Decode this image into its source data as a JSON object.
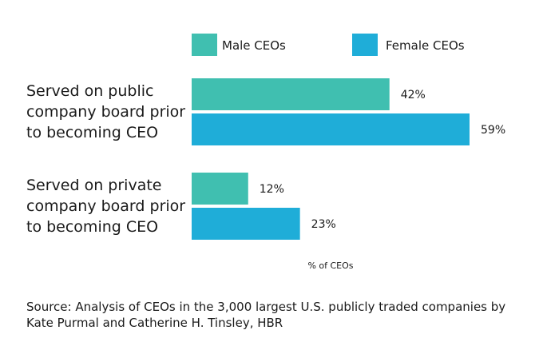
{
  "chart_data": {
    "type": "bar",
    "orientation": "horizontal",
    "categories": [
      [
        "Served on public",
        "company board prior",
        "to becoming CEO"
      ],
      [
        "Served on private",
        "company board prior",
        "to becoming CEO"
      ]
    ],
    "series": [
      {
        "name": "Male CEOs",
        "values": [
          42,
          12
        ],
        "labels": [
          "42%",
          "12%"
        ],
        "color": "#40bfb0"
      },
      {
        "name": "Female CEOs",
        "values": [
          59,
          23
        ],
        "labels": [
          "59%",
          "23%"
        ],
        "color": "#1fadd8"
      }
    ],
    "xlabel": "% of CEOs",
    "xlim": [
      0,
      100
    ],
    "grid": false,
    "legend": "top"
  },
  "source": "Source: Analysis of CEOs in the 3,000 largest U.S. publicly traded companies by Kate Purmal and Catherine H. Tinsley, HBR"
}
